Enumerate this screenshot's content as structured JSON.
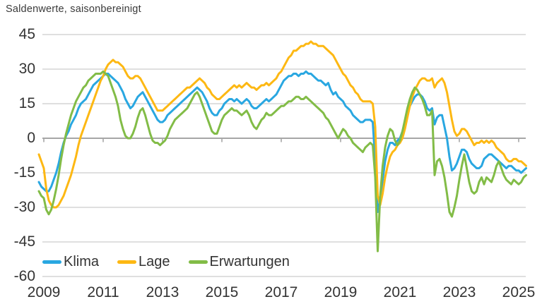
{
  "title": "Saldenwerte, saisonbereinigt",
  "colors": {
    "klima": "#29a7e1",
    "lage": "#fdb813",
    "erwartungen": "#82bc47",
    "grid": "#cccccc",
    "zero_axis": "#a6a6a6",
    "text": "#333333"
  },
  "chart_data": {
    "type": "line",
    "title": "Saldenwerte, saisonbereinigt",
    "x_start": 2008.8333,
    "x_step_months": 1,
    "x_tick_years": [
      2009,
      2011,
      2013,
      2015,
      2017,
      2019,
      2021,
      2023,
      2025
    ],
    "x_tick_labels": [
      "2009",
      "2011",
      "2013",
      "2015",
      "2017",
      "2019",
      "2021",
      "2023",
      "2025"
    ],
    "y_ticks": [
      45,
      30,
      15,
      0,
      -15,
      -30,
      -45,
      -60
    ],
    "ylim": [
      -60,
      45
    ],
    "xlim": [
      2008.9,
      2025.3
    ],
    "grid": "horizontal",
    "legend_position": "bottom-left-inside",
    "series": [
      {
        "name": "Klima",
        "color": "#29a7e1",
        "values": [
          -19,
          -21,
          -22,
          -23,
          -23,
          -21,
          -18,
          -15,
          -11,
          -6,
          -2,
          1,
          3,
          6,
          8,
          10,
          13,
          15,
          16,
          17,
          19,
          21,
          23,
          24,
          25,
          26,
          27,
          28,
          28,
          27,
          26,
          25,
          24,
          22,
          20,
          17,
          15,
          13,
          14,
          16,
          18,
          19,
          20,
          18,
          16,
          14,
          12,
          10,
          8,
          7,
          7,
          8,
          10,
          11,
          12,
          13,
          14,
          15,
          16,
          17,
          18,
          19,
          20,
          21,
          22,
          21,
          20,
          18,
          16,
          13,
          11,
          10,
          10,
          12,
          13,
          15,
          16,
          17,
          17,
          16,
          17,
          16,
          15,
          16,
          17,
          16,
          14,
          13,
          13,
          14,
          15,
          16,
          17,
          16,
          17,
          18,
          19,
          21,
          23,
          25,
          26,
          27,
          27,
          28,
          28,
          27,
          28,
          28,
          29,
          28,
          28,
          27,
          26,
          25,
          25,
          24,
          23,
          24,
          21,
          19,
          20,
          18,
          17,
          16,
          14,
          13,
          12,
          10,
          9,
          8,
          7,
          7,
          8,
          8,
          8,
          7,
          -10,
          -32,
          -27,
          -18,
          -10,
          -5,
          -2,
          -2,
          -3,
          -1,
          0,
          3,
          7,
          11,
          14,
          16,
          18,
          19,
          19,
          18,
          16,
          13,
          12,
          13,
          6,
          9,
          10,
          10,
          5,
          0,
          -8,
          -14,
          -13,
          -11,
          -8,
          -5,
          -5,
          -6,
          -9,
          -11,
          -12,
          -13,
          -13,
          -12,
          -9,
          -8,
          -7,
          -7,
          -8,
          -9,
          -10,
          -11,
          -12,
          -13,
          -12,
          -12,
          -13,
          -14,
          -14,
          -15,
          -14,
          -13
        ]
      },
      {
        "name": "Lage",
        "color": "#fdb813",
        "values": [
          -7,
          -10,
          -13,
          -22,
          -27,
          -29,
          -30,
          -30,
          -29,
          -27,
          -25,
          -22,
          -19,
          -16,
          -12,
          -8,
          -3,
          1,
          4,
          7,
          10,
          13,
          16,
          19,
          22,
          25,
          27,
          30,
          32,
          33,
          34,
          33,
          33,
          32,
          31,
          29,
          27,
          26,
          26,
          27,
          27,
          26,
          24,
          22,
          20,
          18,
          16,
          14,
          12,
          12,
          12,
          13,
          14,
          15,
          16,
          17,
          18,
          19,
          20,
          21,
          22,
          22,
          23,
          24,
          25,
          26,
          25,
          24,
          22,
          21,
          19,
          18,
          17,
          17,
          18,
          19,
          20,
          21,
          22,
          23,
          22,
          23,
          22,
          23,
          24,
          23,
          22,
          22,
          21,
          22,
          23,
          23,
          24,
          23,
          24,
          25,
          26,
          28,
          29,
          31,
          33,
          35,
          36,
          38,
          38,
          39,
          40,
          40,
          41,
          41,
          42,
          41,
          41,
          40,
          40,
          40,
          39,
          38,
          37,
          36,
          34,
          32,
          30,
          28,
          27,
          25,
          23,
          22,
          20,
          19,
          17,
          16,
          16,
          16,
          16,
          15,
          5,
          -25,
          -29,
          -24,
          -17,
          -12,
          -8,
          -6,
          -5,
          -3,
          -2,
          0,
          4,
          9,
          14,
          18,
          21,
          23,
          25,
          26,
          26,
          25,
          25,
          26,
          22,
          24,
          25,
          26,
          24,
          20,
          14,
          8,
          3,
          1,
          2,
          4,
          4,
          3,
          1,
          -1,
          -3,
          -2,
          -2,
          -1,
          -2,
          -1,
          -2,
          -1,
          -2,
          -4,
          -5,
          -6,
          -7,
          -9,
          -10,
          -10,
          -9,
          -9,
          -10,
          -10,
          -11,
          -12
        ]
      },
      {
        "name": "Erwartungen",
        "color": "#82bc47",
        "values": [
          -23,
          -25,
          -26,
          -31,
          -33,
          -31,
          -27,
          -22,
          -16,
          -9,
          -3,
          2,
          6,
          10,
          13,
          16,
          18,
          20,
          22,
          23,
          25,
          26,
          27,
          28,
          28,
          28,
          29,
          28,
          27,
          24,
          21,
          18,
          14,
          8,
          4,
          1,
          0,
          0,
          2,
          5,
          9,
          12,
          13,
          10,
          6,
          2,
          -1,
          -2,
          -2,
          -3,
          -2,
          -1,
          1,
          4,
          6,
          8,
          9,
          10,
          11,
          12,
          13,
          15,
          17,
          19,
          20,
          18,
          15,
          12,
          9,
          6,
          3,
          2,
          2,
          5,
          8,
          10,
          11,
          12,
          13,
          12,
          12,
          11,
          10,
          11,
          12,
          10,
          7,
          5,
          4,
          6,
          8,
          9,
          11,
          10,
          10,
          11,
          12,
          13,
          14,
          14,
          15,
          16,
          16,
          17,
          18,
          18,
          17,
          17,
          18,
          17,
          16,
          15,
          14,
          13,
          12,
          11,
          9,
          8,
          6,
          4,
          2,
          0,
          2,
          4,
          3,
          1,
          0,
          -2,
          -3,
          -4,
          -5,
          -6,
          -4,
          -3,
          -2,
          -3,
          -17,
          -49,
          -25,
          -12,
          -4,
          1,
          4,
          3,
          -1,
          -3,
          -1,
          3,
          8,
          13,
          17,
          20,
          22,
          21,
          19,
          17,
          14,
          10,
          10,
          12,
          -16,
          -10,
          -9,
          -12,
          -17,
          -24,
          -32,
          -34,
          -30,
          -25,
          -18,
          -12,
          -7,
          -13,
          -19,
          -23,
          -24,
          -23,
          -19,
          -17,
          -20,
          -17,
          -18,
          -19,
          -16,
          -12,
          -10,
          -13,
          -16,
          -18,
          -19,
          -20,
          -18,
          -19,
          -20,
          -19,
          -17,
          -16
        ]
      }
    ]
  }
}
